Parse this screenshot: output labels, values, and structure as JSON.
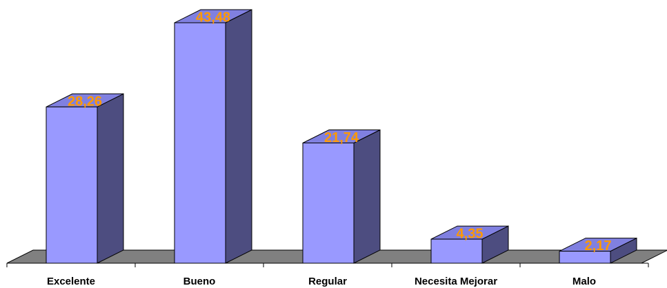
{
  "chart_data": {
    "type": "bar",
    "categories": [
      "Excelente",
      "Bueno",
      "Regular",
      "Necesita Mejorar",
      "Malo"
    ],
    "values": [
      28.26,
      43.48,
      21.74,
      4.35,
      2.17
    ],
    "value_labels": [
      "28,26",
      "43,48",
      "21,74",
      "4,35",
      "2,17"
    ],
    "title": "",
    "xlabel": "",
    "ylabel": "",
    "ylim": [
      0,
      45
    ],
    "grid": false,
    "legend": "none",
    "style": "3d-column"
  },
  "colors": {
    "bar_front": "#9999ff",
    "bar_side": "#4d4d80",
    "bar_top": "#8080e0",
    "floor": "#808080",
    "value_label": "#ff9900"
  }
}
